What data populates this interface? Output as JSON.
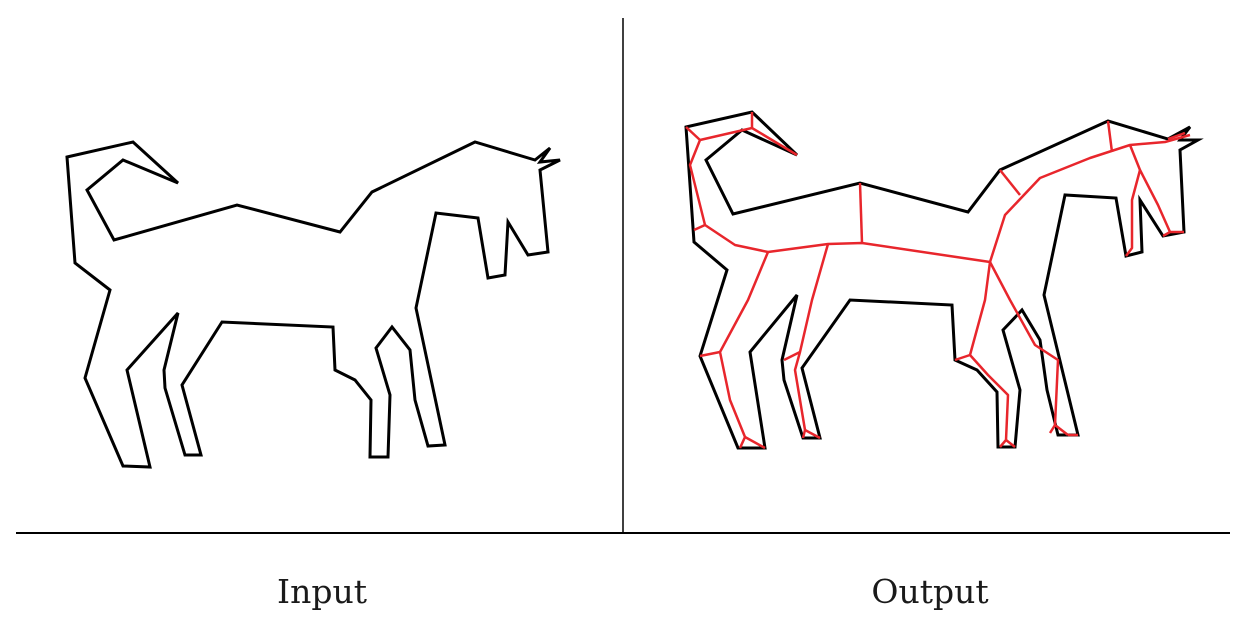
{
  "panels": [
    {
      "id": "input",
      "caption": "Input"
    },
    {
      "id": "output",
      "caption": "Output"
    }
  ],
  "colors": {
    "outline": "#000000",
    "skeleton": "#e8262c",
    "rule": "#000000"
  }
}
